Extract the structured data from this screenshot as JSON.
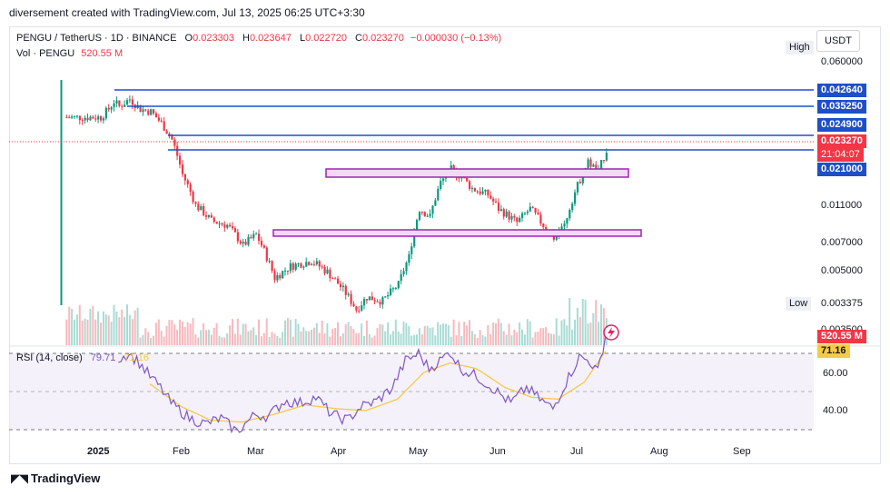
{
  "caption": "diversement created with TradingView.com, Jul 13, 2025 06:25 UTC+3:30",
  "legend": {
    "symbol": "PENGU / TetherUS · 1D · BINANCE",
    "open_label": "O",
    "open": "0.023303",
    "high_label": "H",
    "high": "0.023647",
    "low_label": "L",
    "low": "0.022720",
    "close_label": "C",
    "close": "0.023270",
    "change": "−0.000030 (−0.13%)",
    "vol_label": "Vol · PENGU",
    "vol": "520.55 M"
  },
  "rsi": {
    "label": "RSI (14, close)",
    "value": "79.71",
    "ma": "71.16",
    "ma_tag": "71.16"
  },
  "currency": "USDT",
  "high_tag": "High",
  "low_tag": "Low",
  "low_value": "0.003375",
  "price_tag": "0.023270",
  "countdown": "21:04:07",
  "vol_tag": "520.55 M",
  "logo": "TradingView",
  "colors": {
    "up": "#089981",
    "down": "#f23645",
    "hline": "#1e4fc9",
    "zone": "#9c27b0",
    "rsi": "#7e57c2",
    "rsi_ma": "#f7c948"
  },
  "chart_data": {
    "type": "candlestick",
    "price_axis_labels": [
      "0.060000",
      "0.042640",
      "0.035250",
      "0.024900",
      "0.021000",
      "0.011000",
      "0.007000",
      "0.005000",
      "0.003500"
    ],
    "horizontal_lines": [
      "0.042640",
      "0.035250",
      "0.024900",
      "0.021000"
    ],
    "x_labels": [
      "2025",
      "Feb",
      "Mar",
      "Apr",
      "May",
      "Jun",
      "Jul",
      "Aug",
      "Sep"
    ],
    "rsi_axis_labels": [
      "60.00",
      "40.00"
    ],
    "price_anchors": [
      {
        "x": "2025-01-01",
        "p": 0.033
      },
      {
        "x": "2025-01-04",
        "p": 0.036
      },
      {
        "x": "2025-01-06",
        "p": 0.039
      },
      {
        "x": "2025-01-08",
        "p": 0.037
      },
      {
        "x": "2025-01-12",
        "p": 0.04
      },
      {
        "x": "2025-01-16",
        "p": 0.036
      },
      {
        "x": "2025-01-20",
        "p": 0.035
      },
      {
        "x": "2025-01-24",
        "p": 0.031
      },
      {
        "x": "2025-01-28",
        "p": 0.026
      },
      {
        "x": "2025-02-01",
        "p": 0.018
      },
      {
        "x": "2025-02-06",
        "p": 0.013
      },
      {
        "x": "2025-02-12",
        "p": 0.011
      },
      {
        "x": "2025-02-18",
        "p": 0.0105
      },
      {
        "x": "2025-02-24",
        "p": 0.0085
      },
      {
        "x": "2025-03-01",
        "p": 0.0095
      },
      {
        "x": "2025-03-08",
        "p": 0.006
      },
      {
        "x": "2025-03-14",
        "p": 0.0068
      },
      {
        "x": "2025-03-22",
        "p": 0.0072
      },
      {
        "x": "2025-03-28",
        "p": 0.0064
      },
      {
        "x": "2025-04-03",
        "p": 0.0053
      },
      {
        "x": "2025-04-08",
        "p": 0.0043
      },
      {
        "x": "2025-04-12",
        "p": 0.0049
      },
      {
        "x": "2025-04-18",
        "p": 0.0047
      },
      {
        "x": "2025-04-24",
        "p": 0.0056
      },
      {
        "x": "2025-04-28",
        "p": 0.0075
      },
      {
        "x": "2025-05-02",
        "p": 0.0125
      },
      {
        "x": "2025-05-06",
        "p": 0.0115
      },
      {
        "x": "2025-05-10",
        "p": 0.0165
      },
      {
        "x": "2025-05-14",
        "p": 0.019
      },
      {
        "x": "2025-05-18",
        "p": 0.0175
      },
      {
        "x": "2025-05-22",
        "p": 0.0155
      },
      {
        "x": "2025-05-28",
        "p": 0.0145
      },
      {
        "x": "2025-06-01",
        "p": 0.0125
      },
      {
        "x": "2025-06-08",
        "p": 0.0108
      },
      {
        "x": "2025-06-13",
        "p": 0.0125
      },
      {
        "x": "2025-06-18",
        "p": 0.0105
      },
      {
        "x": "2025-06-22",
        "p": 0.0092
      },
      {
        "x": "2025-06-26",
        "p": 0.0105
      },
      {
        "x": "2025-07-01",
        "p": 0.016
      },
      {
        "x": "2025-07-05",
        "p": 0.0205
      },
      {
        "x": "2025-07-09",
        "p": 0.0185
      },
      {
        "x": "2025-07-12",
        "p": 0.0233
      }
    ],
    "rsi_anchors": [
      {
        "x": "2025-01-08",
        "v": 67
      },
      {
        "x": "2025-01-12",
        "v": 70
      },
      {
        "x": "2025-01-16",
        "v": 65
      },
      {
        "x": "2025-01-20",
        "v": 58
      },
      {
        "x": "2025-01-24",
        "v": 52
      },
      {
        "x": "2025-01-28",
        "v": 44
      },
      {
        "x": "2025-02-04",
        "v": 36
      },
      {
        "x": "2025-02-10",
        "v": 33
      },
      {
        "x": "2025-02-16",
        "v": 36
      },
      {
        "x": "2025-02-22",
        "v": 29
      },
      {
        "x": "2025-03-01",
        "v": 38
      },
      {
        "x": "2025-03-06",
        "v": 37
      },
      {
        "x": "2025-03-12",
        "v": 45
      },
      {
        "x": "2025-03-18",
        "v": 44
      },
      {
        "x": "2025-03-24",
        "v": 47
      },
      {
        "x": "2025-03-30",
        "v": 38
      },
      {
        "x": "2025-04-05",
        "v": 35
      },
      {
        "x": "2025-04-10",
        "v": 42
      },
      {
        "x": "2025-04-16",
        "v": 45
      },
      {
        "x": "2025-04-22",
        "v": 52
      },
      {
        "x": "2025-04-27",
        "v": 66
      },
      {
        "x": "2025-05-02",
        "v": 70
      },
      {
        "x": "2025-05-06",
        "v": 62
      },
      {
        "x": "2025-05-10",
        "v": 66
      },
      {
        "x": "2025-05-14",
        "v": 71
      },
      {
        "x": "2025-05-18",
        "v": 62
      },
      {
        "x": "2025-05-24",
        "v": 58
      },
      {
        "x": "2025-05-30",
        "v": 52
      },
      {
        "x": "2025-06-06",
        "v": 44
      },
      {
        "x": "2025-06-12",
        "v": 52
      },
      {
        "x": "2025-06-18",
        "v": 45
      },
      {
        "x": "2025-06-22",
        "v": 41
      },
      {
        "x": "2025-06-27",
        "v": 55
      },
      {
        "x": "2025-07-02",
        "v": 68
      },
      {
        "x": "2025-07-06",
        "v": 66
      },
      {
        "x": "2025-07-09",
        "v": 60
      },
      {
        "x": "2025-07-12",
        "v": 79.71
      }
    ],
    "rsi_ma_anchors": [
      {
        "x": "2025-01-20",
        "v": 54
      },
      {
        "x": "2025-02-01",
        "v": 42
      },
      {
        "x": "2025-02-12",
        "v": 35
      },
      {
        "x": "2025-02-24",
        "v": 34
      },
      {
        "x": "2025-03-08",
        "v": 38
      },
      {
        "x": "2025-03-20",
        "v": 43
      },
      {
        "x": "2025-04-01",
        "v": 41
      },
      {
        "x": "2025-04-12",
        "v": 40
      },
      {
        "x": "2025-04-24",
        "v": 46
      },
      {
        "x": "2025-05-04",
        "v": 60
      },
      {
        "x": "2025-05-14",
        "v": 65
      },
      {
        "x": "2025-05-24",
        "v": 62
      },
      {
        "x": "2025-06-04",
        "v": 52
      },
      {
        "x": "2025-06-14",
        "v": 47
      },
      {
        "x": "2025-06-24",
        "v": 46
      },
      {
        "x": "2025-07-04",
        "v": 55
      },
      {
        "x": "2025-07-12",
        "v": 71.16
      }
    ],
    "rsi_levels": [
      70,
      50,
      30
    ],
    "volume_legend": "520.55 M"
  }
}
